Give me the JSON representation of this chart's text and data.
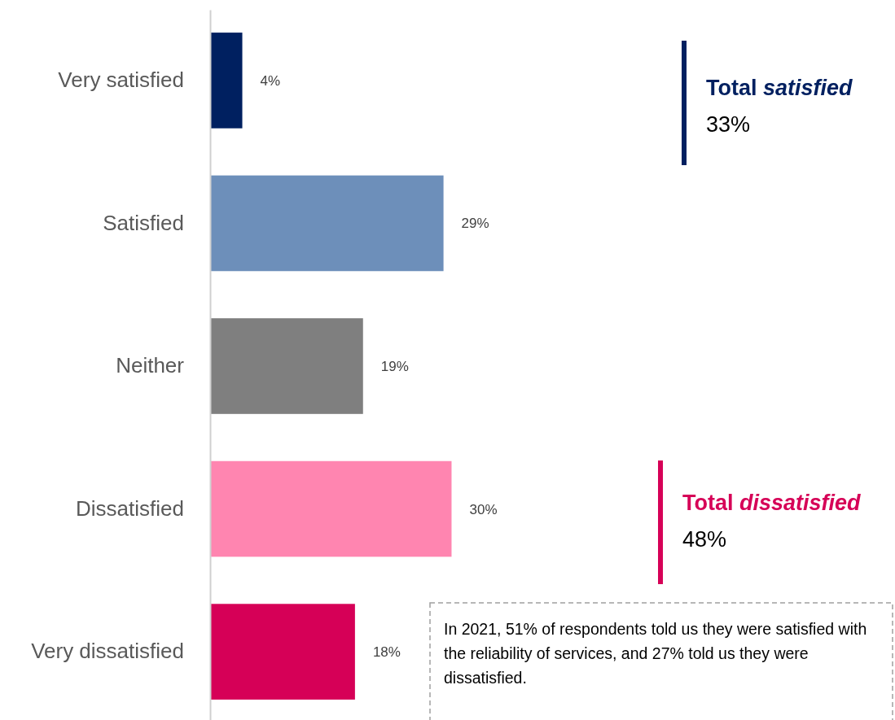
{
  "chart_data": {
    "type": "bar",
    "orientation": "horizontal",
    "categories": [
      "Very satisfied",
      "Satisfied",
      "Neither",
      "Dissatisfied",
      "Very dissatisfied"
    ],
    "values": [
      4,
      29,
      19,
      30,
      18
    ],
    "colors": [
      "#002060",
      "#6d8fba",
      "#7f7f7f",
      "#ff85b0",
      "#d60057"
    ],
    "value_labels": [
      "4%",
      "29%",
      "19%",
      "30%",
      "18%"
    ],
    "xlim": [
      0,
      85
    ],
    "annotations": [
      "Total satisfied",
      "33%",
      "Total dissatisfied",
      "48%",
      "In 2021, 51% of respondents told us they were satisfied with the reliability of services, and 27% told us they were dissatisfied."
    ]
  }
}
